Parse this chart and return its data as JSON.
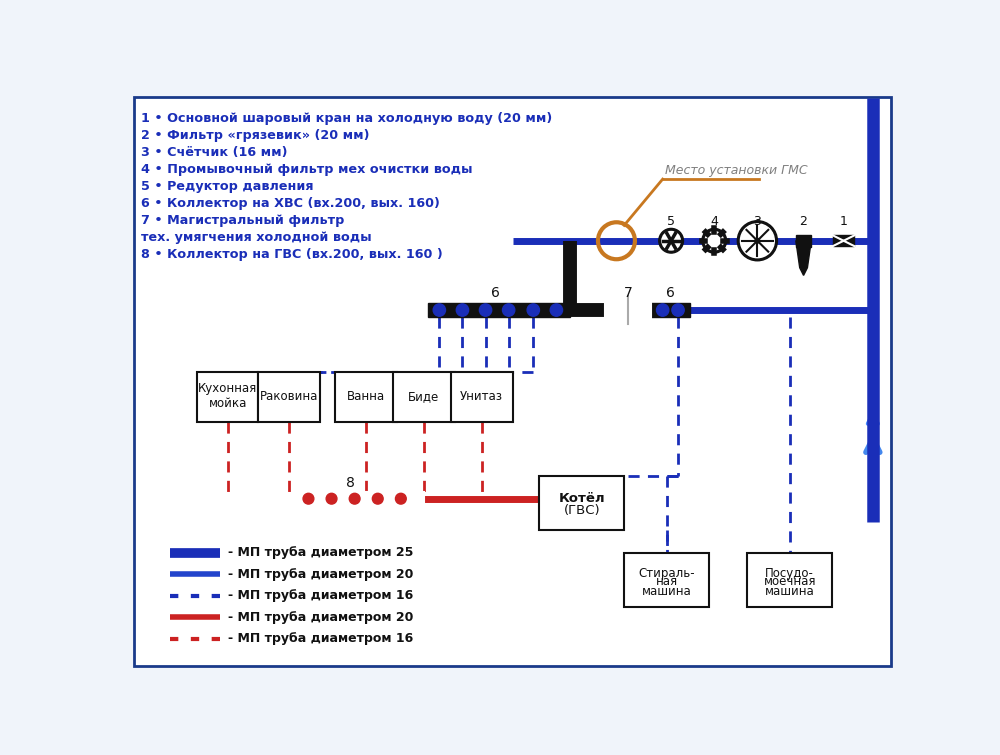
{
  "bg_color": "#f0f4fa",
  "border_color": "#1a3a8a",
  "legend_items": [
    {
      "label": "- МП труба диаметром 25",
      "color": "#1a2eb8",
      "lw": 6,
      "ls": "solid"
    },
    {
      "label": "- МП труба диаметром 20",
      "color": "#2244cc",
      "lw": 3,
      "ls": "solid"
    },
    {
      "label": "- МП труба диаметром 16",
      "color": "#1a2eb8",
      "lw": 2,
      "ls": "dotted"
    },
    {
      "label": "- МП труба диаметром 20",
      "color": "#cc2222",
      "lw": 3,
      "ls": "solid"
    },
    {
      "label": "- МП труба диаметром 16",
      "color": "#cc2222",
      "lw": 2,
      "ls": "dotted"
    }
  ],
  "numbered_items": [
    "1 • Основной шаровый кран на холодную воду (20 мм)",
    "2 • Фильтр «грязевик» (20 мм)",
    "3 • Счётчик (16 мм)",
    "4 • Промывочный фильтр мех очистки воды",
    "5 • Редуктор давления",
    "6 • Коллектор на ХВС (вх.200, вых. 160)",
    "7 • Магистральный фильтр",
    "тех. умягчения холодной воды",
    "8 • Коллектор на ГВС (вх.200, вых. 160 )"
  ],
  "gmc_label": "Место установки ГМС",
  "appliances": [
    "Кухонная\nмойка",
    "Раковина",
    "Ванна",
    "Биде",
    "Унитаз"
  ],
  "dark_blue": "#1a2eb8",
  "mid_blue": "#2244cc",
  "red": "#cc2222",
  "black": "#111111",
  "orange": "#c87820"
}
